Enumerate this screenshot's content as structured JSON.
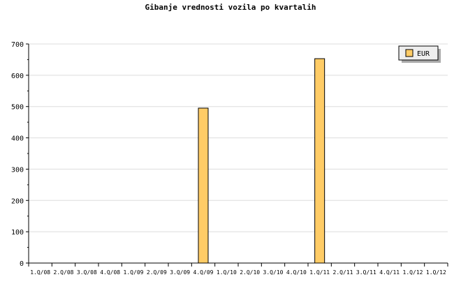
{
  "chart_data": {
    "type": "bar",
    "title": "Gibanje vrednosti vozila po kvartalih",
    "categories": [
      "1.Q/08",
      "2.Q/08",
      "3.Q/08",
      "4.Q/08",
      "1.Q/09",
      "2.Q/09",
      "3.Q/09",
      "4.Q/09",
      "1.Q/10",
      "2.Q/10",
      "3.Q/10",
      "4.Q/10",
      "1.Q/11",
      "2.Q/11",
      "3.Q/11",
      "4.Q/11",
      "1.Q/12",
      "1.Q/12"
    ],
    "series": [
      {
        "name": "EUR",
        "values": [
          0,
          0,
          0,
          0,
          0,
          0,
          0,
          495,
          0,
          0,
          0,
          0,
          653,
          0,
          0,
          0,
          0,
          0
        ],
        "color": "#ffcc66"
      }
    ],
    "xlabel": "",
    "ylabel": "",
    "ylim": [
      0,
      700
    ],
    "yticks": [
      0,
      100,
      200,
      300,
      400,
      500,
      600,
      700
    ],
    "grid": true,
    "legend": "top-right"
  }
}
